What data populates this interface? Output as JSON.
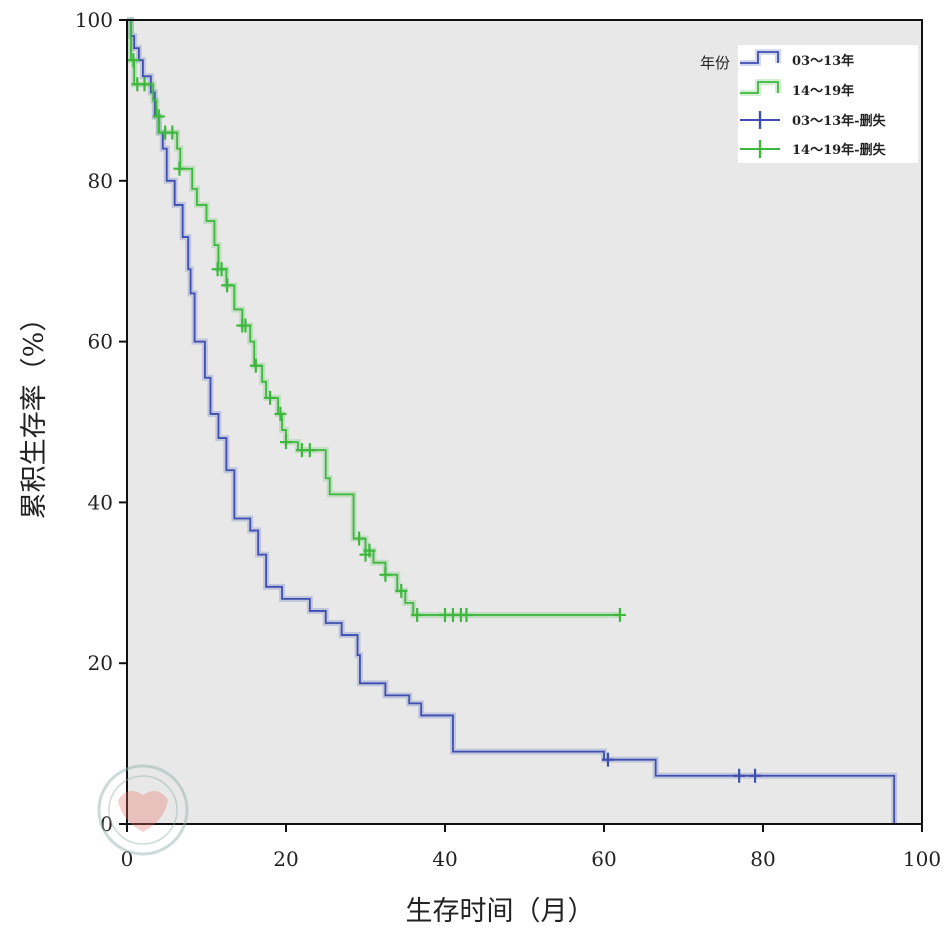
{
  "chart_data": {
    "type": "line",
    "subtype": "kaplan-meier-step",
    "xlabel": "生存时间（月）",
    "ylabel": "累积生存率（%）",
    "xlim": [
      0,
      100
    ],
    "ylim": [
      0,
      100
    ],
    "xticks": [
      0,
      20,
      40,
      60,
      80,
      100
    ],
    "yticks": [
      0,
      20,
      40,
      60,
      80,
      100
    ],
    "legend": {
      "title": "年份",
      "position": "top-right",
      "entries": [
        "03～13年",
        "14～19年",
        "03～13年-删失",
        "14～19年-删失"
      ]
    },
    "series": [
      {
        "name": "03～13年",
        "color": "#3d4fb0",
        "steps": [
          [
            0,
            100
          ],
          [
            0.5,
            98
          ],
          [
            0.9,
            96.5
          ],
          [
            1.5,
            95
          ],
          [
            2,
            93
          ],
          [
            3,
            91
          ],
          [
            3.5,
            88
          ],
          [
            4,
            86
          ],
          [
            4.5,
            84
          ],
          [
            5,
            80
          ],
          [
            6,
            77
          ],
          [
            7,
            73
          ],
          [
            7.7,
            69
          ],
          [
            8,
            66
          ],
          [
            8.5,
            60
          ],
          [
            9.8,
            55.5
          ],
          [
            10.5,
            51
          ],
          [
            11.5,
            48
          ],
          [
            12.5,
            44
          ],
          [
            13.5,
            38
          ],
          [
            15.5,
            36.5
          ],
          [
            16.5,
            33.5
          ],
          [
            17.5,
            29.5
          ],
          [
            19.5,
            28
          ],
          [
            23,
            26.5
          ],
          [
            25,
            25
          ],
          [
            27,
            23.5
          ],
          [
            29,
            21
          ],
          [
            29.3,
            17.5
          ],
          [
            32.5,
            16
          ],
          [
            35.5,
            15
          ],
          [
            37,
            13.5
          ],
          [
            41,
            9
          ],
          [
            60,
            8
          ],
          [
            66.5,
            6
          ],
          [
            96.5,
            0
          ]
        ],
        "censored": [
          [
            60.5,
            8
          ],
          [
            77,
            6
          ],
          [
            79,
            6
          ]
        ]
      },
      {
        "name": "14～19年",
        "color": "#3cb83c",
        "steps": [
          [
            0,
            100
          ],
          [
            0.5,
            95
          ],
          [
            0.9,
            92
          ],
          [
            3.3,
            90
          ],
          [
            3.7,
            88
          ],
          [
            4,
            86
          ],
          [
            6.3,
            84
          ],
          [
            6.7,
            81.5
          ],
          [
            8.2,
            79
          ],
          [
            8.8,
            77
          ],
          [
            10,
            75
          ],
          [
            11,
            72
          ],
          [
            11.5,
            69
          ],
          [
            12.5,
            67
          ],
          [
            13.5,
            64
          ],
          [
            14.5,
            62
          ],
          [
            15.5,
            60
          ],
          [
            16,
            57
          ],
          [
            17,
            55
          ],
          [
            17.5,
            53
          ],
          [
            19,
            51
          ],
          [
            19.5,
            49
          ],
          [
            20,
            47.5
          ],
          [
            21.5,
            46.5
          ],
          [
            25,
            43
          ],
          [
            25.5,
            41
          ],
          [
            28.5,
            35.5
          ],
          [
            30,
            34
          ],
          [
            31,
            32.5
          ],
          [
            32.5,
            31
          ],
          [
            34,
            29
          ],
          [
            35,
            27.5
          ],
          [
            36,
            26
          ]
        ],
        "censored": [
          [
            0.8,
            95
          ],
          [
            1.3,
            92
          ],
          [
            2.2,
            92
          ],
          [
            4,
            88
          ],
          [
            4.8,
            86
          ],
          [
            5.7,
            86
          ],
          [
            6.6,
            81.5
          ],
          [
            11.4,
            69
          ],
          [
            11.9,
            69
          ],
          [
            12.6,
            67
          ],
          [
            14.5,
            62
          ],
          [
            14.9,
            62
          ],
          [
            16.2,
            57
          ],
          [
            18,
            53
          ],
          [
            19.3,
            51
          ],
          [
            20,
            47.5
          ],
          [
            22,
            46.5
          ],
          [
            23,
            46.5
          ],
          [
            29.2,
            35.5
          ],
          [
            30,
            33.5
          ],
          [
            30.5,
            34
          ],
          [
            32.5,
            31
          ],
          [
            34.5,
            29
          ],
          [
            36.5,
            26
          ],
          [
            40,
            26
          ],
          [
            41,
            26
          ],
          [
            42,
            26
          ],
          [
            42.7,
            26
          ],
          [
            62,
            26
          ]
        ],
        "final_x": 62
      }
    ]
  }
}
